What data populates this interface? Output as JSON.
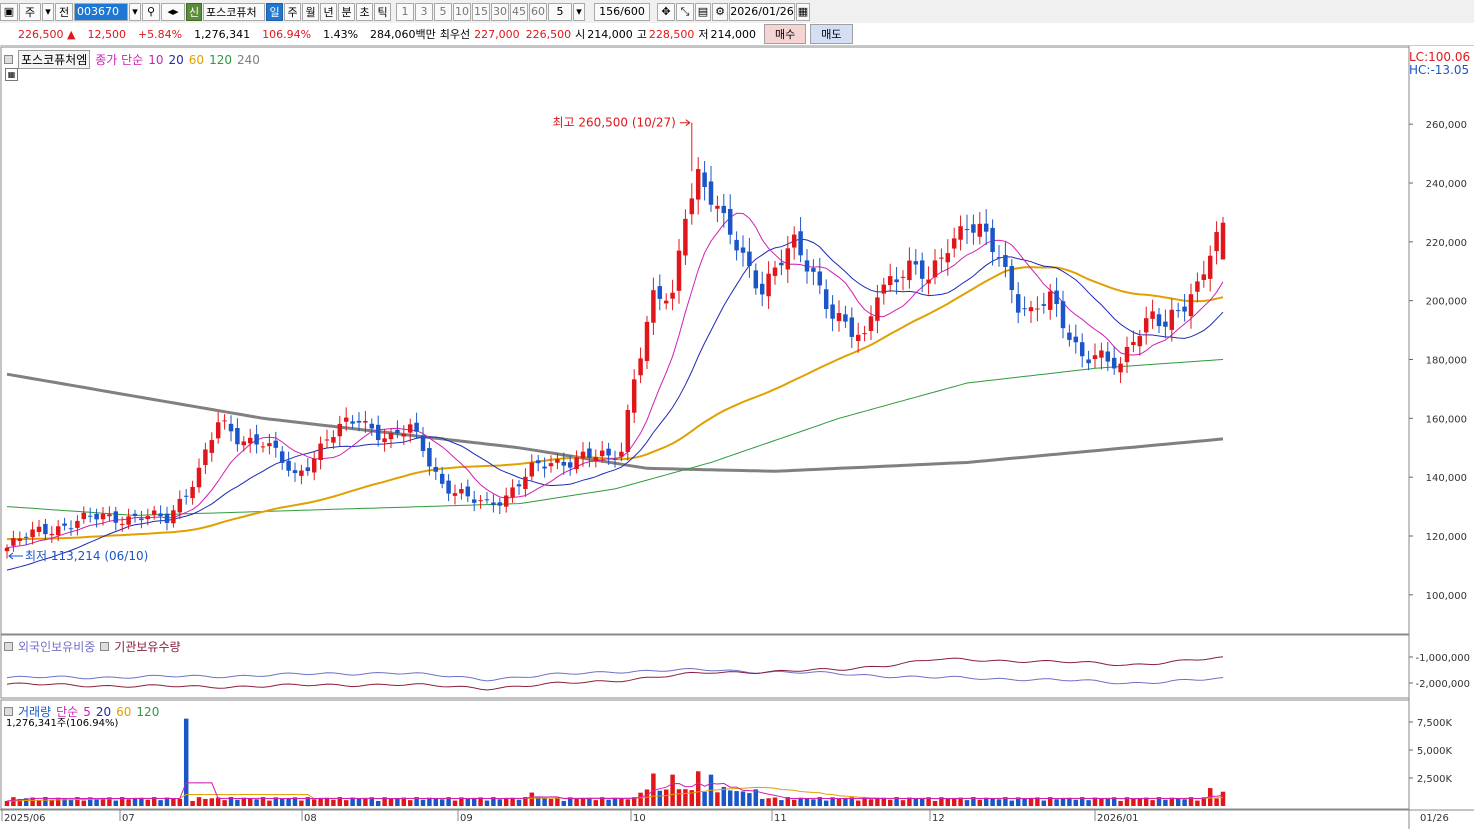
{
  "toolbar": {
    "market": "주",
    "prefix": "전",
    "code": "003670",
    "credit_tag": "신",
    "stock_name": "포스코퓨처",
    "periods": [
      "일",
      "주",
      "월",
      "년",
      "분",
      "초",
      "틱"
    ],
    "active_period": "일",
    "intervals": [
      "1",
      "3",
      "5",
      "10",
      "15",
      "30",
      "45",
      "60"
    ],
    "interval_select": "5",
    "count": "156/600",
    "date": "2026/01/26"
  },
  "quote": {
    "price": "226,500",
    "change": "12,500",
    "change_pct": "+5.84%",
    "volume": "1,276,341",
    "volume_ratio": "106.94%",
    "turnover": "1.43%",
    "amount": "284,060백만",
    "best_ask_label": "최우선",
    "best_ask": "227,000",
    "best_bid": "226,500",
    "open_label": "시",
    "open": "214,000",
    "high_label": "고",
    "high": "228,500",
    "low_label": "저",
    "low": "214,000",
    "buy_label": "매수",
    "sell_label": "매도"
  },
  "legend": {
    "stock_name": "포스코퓨처엠",
    "ma_label": "종가 단순",
    "ma_periods": [
      "10",
      "20",
      "60",
      "120",
      "240"
    ],
    "ma_colors": [
      "#d01fb4",
      "#1e2ab5",
      "#e0a000",
      "#2e9b3c",
      "#808080"
    ],
    "lc": "LC:100.06",
    "hc": "HC:-13.05",
    "ownership_label_1": "외국인보유비중",
    "ownership_label_2": "기관보유수량",
    "volume_label": "거래량",
    "volume_ma_label": "단순",
    "volume_ma_periods": [
      "5",
      "20",
      "60",
      "120"
    ],
    "volume_now": "1,276,341주(106.94%)"
  },
  "annotations": {
    "max_label": "최고 260,500 (10/27)",
    "min_label": "최저 113,214 (06/10)"
  },
  "colors": {
    "up": "#e0161b",
    "down": "#1a56c8",
    "foreign": "#7070c8",
    "inst": "#8a1f3c"
  },
  "chart_data": {
    "type": "candlestick",
    "y_ticks": [
      "260,000",
      "240,000",
      "220,000",
      "200,000",
      "180,000",
      "160,000",
      "140,000",
      "120,000",
      "100,000"
    ],
    "ylim": [
      85000,
      275000
    ],
    "x_labels": [
      "2025/06",
      "07",
      "08",
      "09",
      "10",
      "11",
      "12",
      "2026/01",
      "01/26"
    ],
    "ownership_ticks": [
      "-1,000,000",
      "-2,000,000"
    ],
    "volume_ticks": [
      "7,500K",
      "5,000K",
      "2,500K"
    ],
    "keypoints_close": [
      [
        0,
        116000
      ],
      [
        5,
        122000
      ],
      [
        10,
        124000
      ],
      [
        15,
        127000
      ],
      [
        20,
        126000
      ],
      [
        25,
        126000
      ],
      [
        30,
        142000
      ],
      [
        33,
        158000
      ],
      [
        36,
        154000
      ],
      [
        40,
        152000
      ],
      [
        45,
        140000
      ],
      [
        50,
        153000
      ],
      [
        55,
        160000
      ],
      [
        60,
        153000
      ],
      [
        63,
        156000
      ],
      [
        65,
        150000
      ],
      [
        68,
        138000
      ],
      [
        72,
        132000
      ],
      [
        75,
        131000
      ],
      [
        78,
        134000
      ],
      [
        82,
        142000
      ],
      [
        85,
        145000
      ],
      [
        90,
        147000
      ],
      [
        94,
        146000
      ],
      [
        96,
        150000
      ],
      [
        98,
        175000
      ],
      [
        101,
        200000
      ],
      [
        104,
        200000
      ],
      [
        106,
        232000
      ],
      [
        108,
        244000
      ],
      [
        110,
        235000
      ],
      [
        112,
        225000
      ],
      [
        115,
        215000
      ],
      [
        118,
        205000
      ],
      [
        121,
        213000
      ],
      [
        123,
        218000
      ],
      [
        126,
        210000
      ],
      [
        129,
        196000
      ],
      [
        132,
        188000
      ],
      [
        134,
        186000
      ],
      [
        136,
        205000
      ],
      [
        138,
        208000
      ],
      [
        141,
        210000
      ],
      [
        144,
        207000
      ],
      [
        147,
        221000
      ],
      [
        150,
        225000
      ],
      [
        152,
        222000
      ],
      [
        155,
        216000
      ],
      [
        158,
        200000
      ],
      [
        160,
        195000
      ],
      [
        163,
        200000
      ],
      [
        165,
        193000
      ],
      [
        168,
        182000
      ],
      [
        170,
        181000
      ],
      [
        172,
        178000
      ],
      [
        174,
        177000
      ],
      [
        176,
        189000
      ],
      [
        179,
        196000
      ],
      [
        181,
        190000
      ],
      [
        184,
        198000
      ],
      [
        186,
        206000
      ],
      [
        188,
        219000
      ],
      [
        190,
        225000
      ]
    ],
    "ma_start": {
      "10": [
        116000,
        116000
      ],
      "20": [
        108000,
        116000
      ],
      "60": [
        119000,
        116000
      ],
      "120": [
        130000,
        116000
      ],
      "240": [
        175000,
        0
      ]
    },
    "ma240_points": [
      [
        0,
        175000
      ],
      [
        40,
        160000
      ],
      [
        80,
        150000
      ],
      [
        100,
        143000
      ],
      [
        120,
        142000
      ],
      [
        150,
        145000
      ],
      [
        170,
        149000
      ],
      [
        190,
        153000
      ]
    ],
    "ma120_points": [
      [
        0,
        130000
      ],
      [
        20,
        127000
      ],
      [
        50,
        129000
      ],
      [
        80,
        131000
      ],
      [
        95,
        136000
      ],
      [
        110,
        145000
      ],
      [
        130,
        160000
      ],
      [
        150,
        172000
      ],
      [
        170,
        177000
      ],
      [
        190,
        180000
      ]
    ],
    "foreign_trend": [
      [
        0,
        -1800000
      ],
      [
        30,
        -1750000
      ],
      [
        60,
        -1600000
      ],
      [
        75,
        -1850000
      ],
      [
        95,
        -1550000
      ],
      [
        110,
        -1500000
      ],
      [
        130,
        -1650000
      ],
      [
        145,
        -1800000
      ],
      [
        160,
        -1850000
      ],
      [
        175,
        -2000000
      ],
      [
        190,
        -1850000
      ]
    ],
    "inst_trend": [
      [
        0,
        -2050000
      ],
      [
        30,
        -2150000
      ],
      [
        60,
        -2050000
      ],
      [
        75,
        -2200000
      ],
      [
        95,
        -1900000
      ],
      [
        110,
        -1600000
      ],
      [
        130,
        -1500000
      ],
      [
        145,
        -1100000
      ],
      [
        160,
        -1150000
      ],
      [
        175,
        -1300000
      ],
      [
        190,
        -1050000
      ]
    ],
    "volume_spikes": [
      [
        28,
        7800
      ],
      [
        82,
        1200
      ],
      [
        101,
        2900
      ],
      [
        104,
        2800
      ],
      [
        106,
        1500
      ],
      [
        108,
        3100
      ],
      [
        110,
        2800
      ],
      [
        112,
        1700
      ],
      [
        115,
        1300
      ],
      [
        188,
        1600
      ],
      [
        190,
        1276
      ]
    ]
  }
}
